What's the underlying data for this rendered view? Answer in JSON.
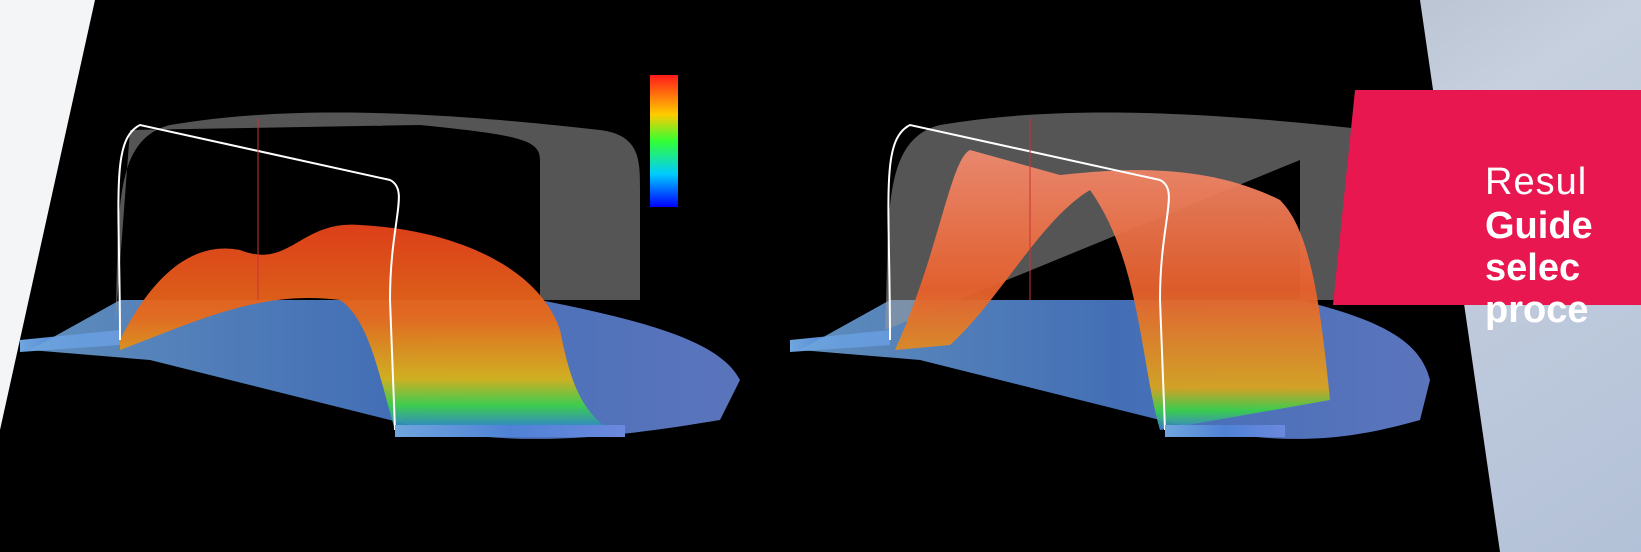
{
  "banner": {
    "lines": [
      "Resul",
      "Guide",
      "selec",
      "proce"
    ]
  }
}
